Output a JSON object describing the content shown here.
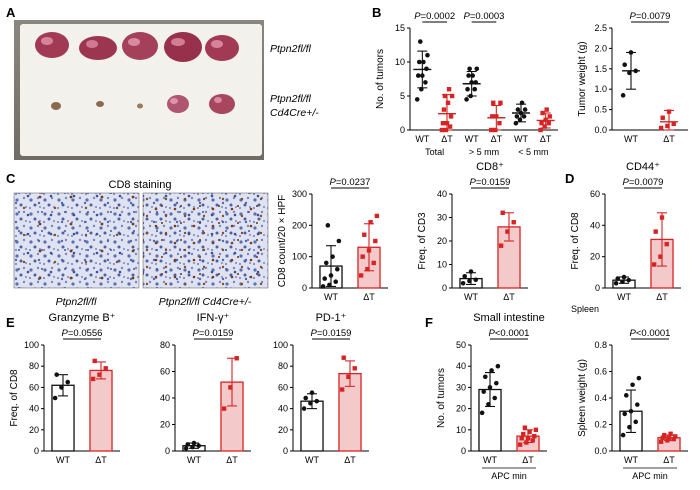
{
  "panel_labels": [
    "A",
    "B",
    "C",
    "D",
    "E",
    "F"
  ],
  "panel_a": {
    "label_top": "Ptpn2fl/fl",
    "label_bottom_1": "Ptpn2fl/fl",
    "label_bottom_2": "Cd4Cre+/-"
  },
  "panel_c": {
    "staining_title": "CD8 staining",
    "image_label_left": "Ptpn2fl/fl",
    "image_label_right": "Ptpn2fl/fl Cd4Cre+/-"
  },
  "colors": {
    "wt": "#111111",
    "ko": "#d62424",
    "ko_fill": "#f4c9c9"
  },
  "chart_data": [
    {
      "id": "B1",
      "type": "scatter",
      "ylabel": "No. of tumors",
      "ylim": [
        0,
        15
      ],
      "yticks": [
        0,
        5,
        10,
        15
      ],
      "groups": [
        {
          "label": "WT",
          "tick_label": "WT",
          "color": "black",
          "mean": 8.9,
          "sd": 2.7,
          "points": [
            4.5,
            6,
            7,
            8,
            8,
            9,
            10,
            10,
            11,
            13
          ]
        },
        {
          "label": "ΔT",
          "tick_label": "ΔT",
          "color": "red",
          "mean": 2.4,
          "sd": 2.8,
          "points": [
            0,
            0,
            0.5,
            1,
            1,
            2,
            3,
            4,
            5,
            5,
            6
          ]
        },
        {
          "label": "WT",
          "tick_label": "WT",
          "color": "black",
          "mean": 6.8,
          "sd": 1.8,
          "points": [
            4.5,
            5,
            6,
            6,
            7,
            7,
            8,
            8,
            9,
            9
          ]
        },
        {
          "label": "ΔT",
          "tick_label": "ΔT",
          "color": "red",
          "mean": 1.8,
          "sd": 1.8,
          "points": [
            0,
            0,
            1,
            2,
            2,
            4,
            4
          ]
        },
        {
          "label": "WT",
          "tick_label": "WT",
          "color": "black",
          "mean": 2.5,
          "sd": 1.3,
          "points": [
            1,
            1.5,
            2,
            2,
            2.5,
            3,
            3,
            4
          ]
        },
        {
          "label": "ΔT",
          "tick_label": "ΔT",
          "color": "red",
          "mean": 1.4,
          "sd": 1.1,
          "points": [
            0,
            0.5,
            1,
            1,
            1.5,
            2,
            2.5,
            3
          ]
        }
      ],
      "group_labels": [
        "Total",
        "> 5 mm",
        "< 5 mm"
      ],
      "pvalues": [
        {
          "text": "P=0.0002",
          "from": 0,
          "to": 1
        },
        {
          "text": "P=0.0003",
          "from": 2,
          "to": 3
        }
      ]
    },
    {
      "id": "B2",
      "type": "scatter",
      "ylabel": "Tumor weight (g)",
      "ylim": [
        0,
        2.5
      ],
      "yticks": [
        0.0,
        0.5,
        1.0,
        1.5,
        2.0,
        2.5
      ],
      "groups": [
        {
          "label": "WT",
          "tick_label": "WT",
          "color": "black",
          "mean": 1.45,
          "sd": 0.45,
          "points": [
            0.85,
            1.4,
            1.45,
            1.6,
            1.9
          ]
        },
        {
          "label": "ΔT",
          "tick_label": "ΔT",
          "color": "red",
          "mean": 0.2,
          "sd": 0.28,
          "points": [
            0.05,
            0.1,
            0.15,
            0.3,
            0.45
          ]
        }
      ],
      "pvalues": [
        {
          "text": "P=0.0079",
          "from": 0,
          "to": 1
        }
      ]
    },
    {
      "id": "C1",
      "type": "bar",
      "ylabel": "CD8 count/20 × HPF",
      "ylim": [
        0,
        300
      ],
      "yticks": [
        0,
        100,
        200,
        300
      ],
      "groups": [
        {
          "label": "WT",
          "tick_label": "WT",
          "color": "black",
          "mean": 70,
          "sd": 65,
          "points": [
            5,
            10,
            20,
            30,
            40,
            60,
            80,
            100,
            150,
            200
          ]
        },
        {
          "label": "ΔT",
          "tick_label": "ΔT",
          "color": "red",
          "mean": 130,
          "sd": 75,
          "points": [
            40,
            60,
            80,
            100,
            120,
            150,
            170,
            210,
            230
          ]
        }
      ],
      "pvalues": [
        {
          "text": "P=0.0237",
          "from": 0,
          "to": 1
        }
      ]
    },
    {
      "id": "C2",
      "type": "bar",
      "title": "CD8⁺",
      "ylabel": "Freq. of CD3",
      "ylim": [
        0,
        40
      ],
      "yticks": [
        0,
        10,
        20,
        30,
        40
      ],
      "groups": [
        {
          "label": "WT",
          "tick_label": "WT",
          "color": "black",
          "mean": 4,
          "sd": 2.5,
          "points": [
            2,
            3,
            3.5,
            5,
            7
          ]
        },
        {
          "label": "ΔT",
          "tick_label": "ΔT",
          "color": "red",
          "mean": 26,
          "sd": 6,
          "points": [
            18,
            24,
            28,
            32
          ]
        }
      ],
      "pvalues": [
        {
          "text": "P=0.0159",
          "from": 0,
          "to": 1
        }
      ]
    },
    {
      "id": "D",
      "type": "bar",
      "title": "CD44⁺",
      "ylabel": "Freq. of CD8",
      "ylim": [
        0,
        60
      ],
      "yticks": [
        0,
        20,
        40,
        60
      ],
      "xnote": "Spleen",
      "groups": [
        {
          "label": "WT",
          "tick_label": "WT",
          "color": "black",
          "mean": 5,
          "sd": 2,
          "points": [
            3,
            4,
            5,
            6,
            7
          ]
        },
        {
          "label": "ΔT",
          "tick_label": "ΔT",
          "color": "red",
          "mean": 31,
          "sd": 17,
          "points": [
            15,
            20,
            28,
            36,
            45
          ]
        }
      ],
      "pvalues": [
        {
          "text": "P=0.0079",
          "from": 0,
          "to": 1
        }
      ]
    },
    {
      "id": "E1",
      "type": "bar",
      "title": "Granzyme B⁺",
      "ylabel": "Freq. of CD8",
      "ylim": [
        0,
        100
      ],
      "yticks": [
        0,
        20,
        40,
        60,
        80,
        100
      ],
      "groups": [
        {
          "label": "WT",
          "tick_label": "WT",
          "color": "black",
          "mean": 62,
          "sd": 10,
          "points": [
            50,
            60,
            65,
            72
          ]
        },
        {
          "label": "ΔT",
          "tick_label": "ΔT",
          "color": "red",
          "mean": 76,
          "sd": 8,
          "points": [
            68,
            72,
            78,
            85
          ]
        }
      ],
      "pvalues": [
        {
          "text": "P=0.0556",
          "from": 0,
          "to": 1
        }
      ]
    },
    {
      "id": "E2",
      "type": "bar",
      "title": "IFN-γ⁺",
      "ylim": [
        0,
        80
      ],
      "yticks": [
        0,
        20,
        40,
        60,
        80
      ],
      "groups": [
        {
          "label": "WT",
          "tick_label": "WT",
          "color": "black",
          "mean": 4,
          "sd": 2,
          "points": [
            2,
            3,
            4,
            5,
            6
          ]
        },
        {
          "label": "ΔT",
          "tick_label": "ΔT",
          "color": "red",
          "mean": 52,
          "sd": 18,
          "points": [
            32,
            48,
            70
          ]
        }
      ],
      "pvalues": [
        {
          "text": "P=0.0159",
          "from": 0,
          "to": 1
        }
      ]
    },
    {
      "id": "E3",
      "type": "bar",
      "title": "PD-1⁺",
      "ylim": [
        0,
        100
      ],
      "yticks": [
        0,
        20,
        40,
        60,
        80,
        100
      ],
      "groups": [
        {
          "label": "WT",
          "tick_label": "WT",
          "color": "black",
          "mean": 47,
          "sd": 7,
          "points": [
            40,
            45,
            47,
            50,
            55
          ]
        },
        {
          "label": "ΔT",
          "tick_label": "ΔT",
          "color": "red",
          "mean": 73,
          "sd": 12,
          "points": [
            58,
            70,
            78,
            88
          ]
        }
      ],
      "pvalues": [
        {
          "text": "P=0.0159",
          "from": 0,
          "to": 1
        }
      ]
    },
    {
      "id": "F1",
      "type": "bar",
      "title": "Small intestine",
      "ylabel": "No. of tumors",
      "ylim": [
        0,
        50
      ],
      "yticks": [
        0,
        10,
        20,
        30,
        40,
        50
      ],
      "xnote": "APC min",
      "groups": [
        {
          "label": "WT",
          "tick_label": "WT",
          "color": "black",
          "mean": 29,
          "sd": 8,
          "points": [
            18,
            22,
            25,
            28,
            30,
            32,
            35,
            38,
            40
          ]
        },
        {
          "label": "ΔT",
          "tick_label": "ΔT",
          "color": "red",
          "mean": 7,
          "sd": 3,
          "points": [
            3,
            4,
            5,
            6,
            6,
            7,
            8,
            9,
            10,
            11
          ]
        }
      ],
      "pvalues": [
        {
          "text": "P<0.0001",
          "from": 0,
          "to": 1
        }
      ]
    },
    {
      "id": "F2",
      "type": "bar",
      "ylabel": "Spleen weight (g)",
      "ylim": [
        0,
        0.8
      ],
      "yticks": [
        0.0,
        0.2,
        0.4,
        0.6,
        0.8
      ],
      "xnote": "APC min",
      "groups": [
        {
          "label": "WT",
          "tick_label": "WT",
          "color": "black",
          "mean": 0.3,
          "sd": 0.16,
          "points": [
            0.12,
            0.18,
            0.22,
            0.28,
            0.3,
            0.35,
            0.42,
            0.5,
            0.55
          ]
        },
        {
          "label": "ΔT",
          "tick_label": "ΔT",
          "color": "red",
          "mean": 0.1,
          "sd": 0.02,
          "points": [
            0.07,
            0.08,
            0.09,
            0.1,
            0.1,
            0.11,
            0.12,
            0.13
          ]
        }
      ],
      "pvalues": [
        {
          "text": "P<0.0001",
          "from": 0,
          "to": 1
        }
      ]
    }
  ]
}
